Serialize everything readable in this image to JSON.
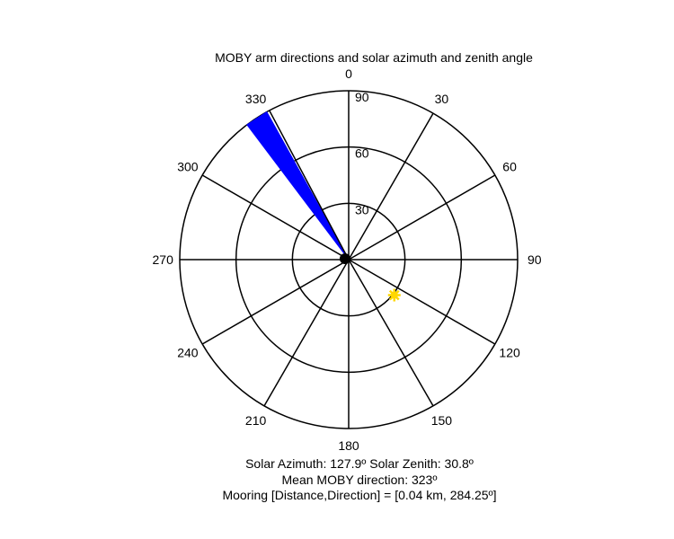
{
  "title": "MOBY arm directions and solar azimuth and zenith angle",
  "chart_data": {
    "type": "polar",
    "title": "MOBY arm directions and solar azimuth and zenith angle",
    "angular_ticks": [
      "0",
      "30",
      "60",
      "90",
      "120",
      "150",
      "180",
      "210",
      "240",
      "270",
      "300",
      "330"
    ],
    "radial_ticks": [
      "30",
      "60",
      "90"
    ],
    "radial_max": 90,
    "angular_direction": "clockwise",
    "angular_zero": "top",
    "grid": true,
    "series": [
      {
        "type": "wedge",
        "from_deg": 323,
        "to_deg": 331,
        "radius": 90,
        "color": "#0000ff"
      },
      {
        "type": "line",
        "angle_deg": 332,
        "radius": 90,
        "color": "#000000"
      },
      {
        "type": "marker",
        "azimuth_deg": 127.9,
        "zenith_deg": 30.8,
        "color": "#ffd700"
      },
      {
        "type": "marker",
        "azimuth_deg": 284.25,
        "zenith_deg": 2,
        "color": "#000000"
      }
    ]
  },
  "captions": {
    "line1": "Solar Azimuth: 127.9º   Solar Zenith: 30.8º",
    "line2": "Mean MOBY direction: 323º",
    "line3": "Mooring [Distance,Direction] = [0.04 km, 284.25º]"
  }
}
